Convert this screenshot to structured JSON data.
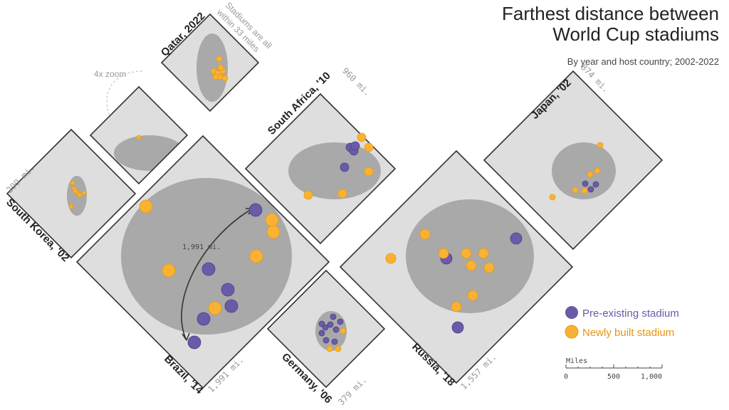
{
  "header": {
    "title_lines": [
      "Farthest distance between",
      "World Cup stadiums"
    ],
    "subtitle": "By year and host country; 2002-2022"
  },
  "panels": {
    "qatar": {
      "label": "Qatar, 2022",
      "note_lines": [
        "Stadiums are all",
        "within 33 miles"
      ],
      "zoom_label": "4x zoom"
    },
    "south_korea": {
      "label": "South Korea, '02",
      "distance": "299 mi."
    },
    "brazil": {
      "label": "Brazil, '14",
      "distance": "1,991 mi.",
      "annotation": "1,991 mi."
    },
    "south_africa": {
      "label": "South Africa, '10",
      "distance": "960 mi."
    },
    "germany": {
      "label": "Germany, '06",
      "distance": "379 mi."
    },
    "russia": {
      "label": "Russia, '18",
      "distance": "1,557 mi."
    },
    "japan": {
      "label": "Japan, '02",
      "distance": "874 mi."
    }
  },
  "legend": [
    "Pre-existing stadium",
    "Newly built stadium"
  ],
  "scale": {
    "label": "Miles",
    "ticks": [
      "0",
      "500",
      "1,000"
    ]
  }
}
